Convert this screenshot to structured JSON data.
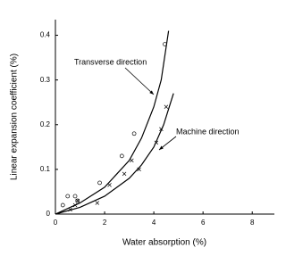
{
  "chart_data": {
    "type": "scatter",
    "xlabel": "Water absorption (%)",
    "ylabel": "Linear expansion coefficient (%)",
    "xlim": [
      0,
      8.9
    ],
    "ylim": [
      0,
      0.435
    ],
    "xticks": [
      0,
      2,
      4,
      6,
      8
    ],
    "yticks": [
      0,
      0.1,
      0.2,
      0.3,
      0.4
    ],
    "series": [
      {
        "name": "Transverse direction",
        "color": "#000000",
        "marker": "circle",
        "x": [
          0.3,
          0.5,
          0.8,
          0.9,
          1.8,
          2.7,
          3.2,
          4.45
        ],
        "values": [
          0.02,
          0.04,
          0.04,
          0.03,
          0.07,
          0.13,
          0.18,
          0.38
        ],
        "curve_x": [
          0,
          1,
          2,
          3,
          3.5,
          4,
          4.3,
          4.6
        ],
        "curve_values": [
          0,
          0.025,
          0.06,
          0.12,
          0.17,
          0.24,
          0.3,
          0.41
        ]
      },
      {
        "name": "Machine direction",
        "color": "#000000",
        "marker": "cross",
        "x": [
          0.6,
          0.8,
          0.9,
          1.7,
          2.2,
          2.8,
          3.1,
          3.4,
          4.1,
          4.3,
          4.5
        ],
        "values": [
          0.01,
          0.02,
          0.03,
          0.025,
          0.065,
          0.09,
          0.12,
          0.1,
          0.16,
          0.19,
          0.24
        ],
        "curve_x": [
          0,
          1,
          2,
          3,
          3.5,
          4,
          4.4,
          4.8
        ],
        "curve_values": [
          0,
          0.015,
          0.04,
          0.08,
          0.11,
          0.15,
          0.2,
          0.27
        ]
      }
    ]
  }
}
